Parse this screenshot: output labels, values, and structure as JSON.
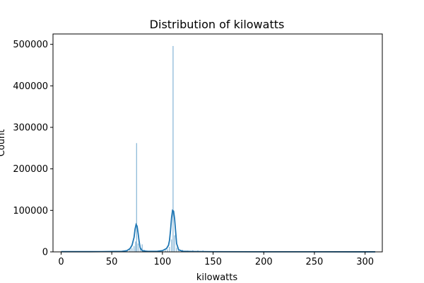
{
  "chart_data": {
    "type": "histogram",
    "title": "Distribution of kilowatts",
    "xlabel": "kilowatts",
    "ylabel": "Count",
    "xlim": [
      -8,
      317
    ],
    "ylim": [
      0,
      525000
    ],
    "xticks": [
      0,
      50,
      100,
      150,
      200,
      250,
      300
    ],
    "yticks": [
      0,
      100000,
      200000,
      300000,
      400000,
      500000
    ],
    "grid": false,
    "colors": {
      "bars": "#1f77b4",
      "kde": "#1f77b4",
      "axes": "#000000"
    },
    "bins": [
      {
        "x": 0,
        "count": 900
      },
      {
        "x": 40,
        "count": 600
      },
      {
        "x": 50,
        "count": 1200
      },
      {
        "x": 55,
        "count": 1500
      },
      {
        "x": 60,
        "count": 2500
      },
      {
        "x": 65,
        "count": 4000
      },
      {
        "x": 68,
        "count": 6000
      },
      {
        "x": 70,
        "count": 9000
      },
      {
        "x": 72,
        "count": 14000
      },
      {
        "x": 73.5,
        "count": 25000
      },
      {
        "x": 74.5,
        "count": 262000
      },
      {
        "x": 76,
        "count": 20000
      },
      {
        "x": 78,
        "count": 10000
      },
      {
        "x": 80,
        "count": 18000
      },
      {
        "x": 82,
        "count": 5000
      },
      {
        "x": 85,
        "count": 3000
      },
      {
        "x": 90,
        "count": 2000
      },
      {
        "x": 95,
        "count": 1500
      },
      {
        "x": 100,
        "count": 3000
      },
      {
        "x": 103,
        "count": 4000
      },
      {
        "x": 105,
        "count": 6000
      },
      {
        "x": 107,
        "count": 12000
      },
      {
        "x": 109,
        "count": 30000
      },
      {
        "x": 110.5,
        "count": 496000
      },
      {
        "x": 112,
        "count": 40000
      },
      {
        "x": 114,
        "count": 10000
      },
      {
        "x": 116,
        "count": 4000
      },
      {
        "x": 120,
        "count": 5000
      },
      {
        "x": 125,
        "count": 3000
      },
      {
        "x": 130,
        "count": 4000
      },
      {
        "x": 135,
        "count": 3500
      },
      {
        "x": 140,
        "count": 3500
      },
      {
        "x": 145,
        "count": 1200
      },
      {
        "x": 150,
        "count": 800
      },
      {
        "x": 160,
        "count": 500
      },
      {
        "x": 180,
        "count": 300
      },
      {
        "x": 200,
        "count": 300
      },
      {
        "x": 250,
        "count": 200
      },
      {
        "x": 300,
        "count": 200
      }
    ],
    "kde": {
      "x": [
        0,
        40,
        60,
        65,
        68,
        70,
        72,
        73,
        74,
        75,
        76,
        77,
        78,
        80,
        85,
        95,
        100,
        104,
        106,
        107,
        108,
        109,
        110,
        111,
        112,
        113,
        114,
        116,
        120,
        130,
        150,
        200,
        250,
        300,
        310
      ],
      "y": [
        500,
        600,
        1200,
        3000,
        8000,
        16000,
        35000,
        55000,
        66000,
        62000,
        45000,
        25000,
        10000,
        3000,
        1200,
        1500,
        3000,
        8000,
        16000,
        28000,
        52000,
        82000,
        100000,
        98000,
        80000,
        50000,
        20000,
        5000,
        1500,
        800,
        400,
        200,
        150,
        100,
        100
      ]
    }
  }
}
